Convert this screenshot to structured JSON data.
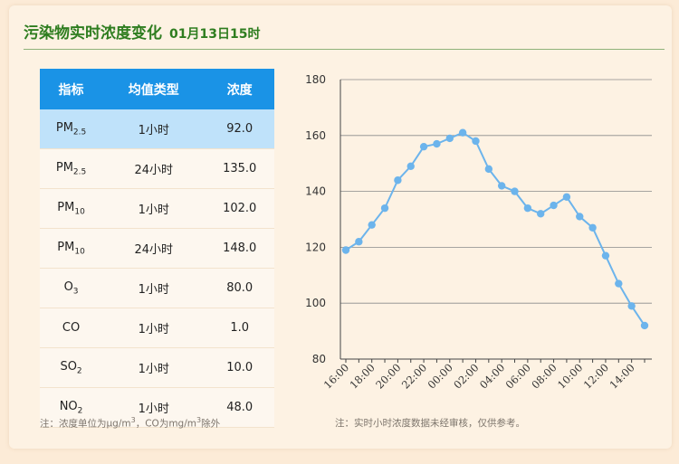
{
  "header": {
    "title": "污染物实时浓度变化",
    "time": "01月13日15时"
  },
  "table": {
    "headers": [
      "指标",
      "均值类型",
      "浓度"
    ],
    "rows": [
      {
        "base": "PM",
        "sub": "2.5",
        "type": "1小时",
        "value": "92.0",
        "highlight": true
      },
      {
        "base": "PM",
        "sub": "2.5",
        "type": "24小时",
        "value": "135.0",
        "highlight": false
      },
      {
        "base": "PM",
        "sub": "10",
        "type": "1小时",
        "value": "102.0",
        "highlight": false
      },
      {
        "base": "PM",
        "sub": "10",
        "type": "24小时",
        "value": "148.0",
        "highlight": false
      },
      {
        "base": "O",
        "sub": "3",
        "type": "1小时",
        "value": "80.0",
        "highlight": false
      },
      {
        "base": "CO",
        "sub": "",
        "type": "1小时",
        "value": "1.0",
        "highlight": false
      },
      {
        "base": "SO",
        "sub": "2",
        "type": "1小时",
        "value": "10.0",
        "highlight": false
      },
      {
        "base": "NO",
        "sub": "2",
        "type": "1小时",
        "value": "48.0",
        "highlight": false
      }
    ]
  },
  "notes": {
    "left": {
      "p1": "注：浓度单位为μg/m",
      "s1": "3",
      "p2": "，CO为mg/m",
      "s2": "3",
      "p3": "除外"
    },
    "right": "注：实时小时浓度数据未经审核，仅供参考。"
  },
  "colors": {
    "accent": "#2e7d1f",
    "header_blue": "#1a93e6",
    "highlight": "#bfe2fa",
    "line": "#6cb4ec"
  },
  "chart_data": {
    "type": "line",
    "x": [
      "16:00",
      "17:00",
      "18:00",
      "19:00",
      "20:00",
      "21:00",
      "22:00",
      "23:00",
      "00:00",
      "01:00",
      "02:00",
      "03:00",
      "04:00",
      "05:00",
      "06:00",
      "07:00",
      "08:00",
      "09:00",
      "10:00",
      "11:00",
      "12:00",
      "13:00",
      "14:00",
      "15:00"
    ],
    "series": [
      {
        "values": [
          119,
          122,
          128,
          134,
          144,
          149,
          156,
          157,
          159,
          161,
          158,
          148,
          142,
          140,
          134,
          132,
          135,
          138,
          131,
          127,
          117,
          107,
          99,
          92
        ]
      }
    ],
    "xticks": [
      "16:00",
      "18:00",
      "20:00",
      "22:00",
      "00:00",
      "02:00",
      "04:00",
      "06:00",
      "08:00",
      "10:00",
      "12:00",
      "14:00"
    ],
    "yticks": [
      80,
      100,
      120,
      140,
      160,
      180
    ],
    "ylim": [
      80,
      180
    ],
    "grid": true
  }
}
